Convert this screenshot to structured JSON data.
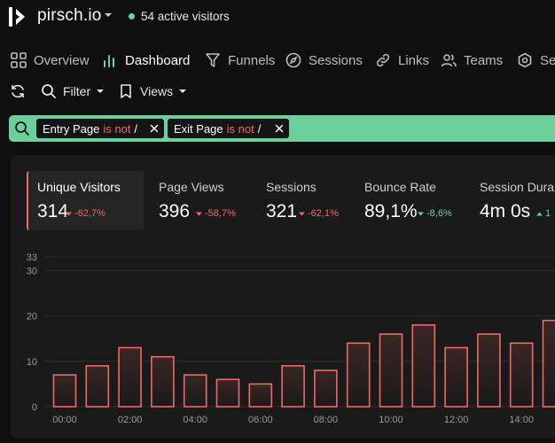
{
  "header": {
    "brand": "pirsch.io",
    "active_visitors": "54 active visitors",
    "accent_green": "#6ccf9c",
    "accent_red": "#ee6b63"
  },
  "nav": {
    "items": [
      {
        "label": "Overview",
        "icon": "grid-icon"
      },
      {
        "label": "Dashboard",
        "icon": "bar-chart-icon"
      },
      {
        "label": "Funnels",
        "icon": "funnel-icon"
      },
      {
        "label": "Sessions",
        "icon": "compass-icon"
      },
      {
        "label": "Links",
        "icon": "link-icon"
      },
      {
        "label": "Teams",
        "icon": "users-icon"
      },
      {
        "label": "Se",
        "icon": "gear-icon"
      }
    ]
  },
  "toolbar": {
    "filter_label": "Filter",
    "views_label": "Views"
  },
  "filters": [
    {
      "field": "Entry Page",
      "operator": "is not",
      "value": "/"
    },
    {
      "field": "Exit Page",
      "operator": "is not",
      "value": "/"
    }
  ],
  "stats": [
    {
      "label": "Unique Visitors",
      "value": "314",
      "delta": "-62,7%",
      "trend": "down"
    },
    {
      "label": "Page Views",
      "value": "396",
      "delta": "-58,7%",
      "trend": "down"
    },
    {
      "label": "Sessions",
      "value": "321",
      "delta": "-62,1%",
      "trend": "down"
    },
    {
      "label": "Bounce Rate",
      "value": "89,1%",
      "delta": "-8,6%",
      "trend": "down-good"
    },
    {
      "label": "Session Dura",
      "value": "4m 0s",
      "delta": "1",
      "trend": "up"
    }
  ],
  "chart_data": {
    "type": "bar",
    "x": [
      "00:00",
      "01:00",
      "02:00",
      "03:00",
      "04:00",
      "05:00",
      "06:00",
      "07:00",
      "08:00",
      "09:00",
      "10:00",
      "11:00",
      "12:00",
      "13:00",
      "14:00",
      "15:00"
    ],
    "x_tick_labels": [
      "00:00",
      "02:00",
      "04:00",
      "06:00",
      "08:00",
      "10:00",
      "12:00",
      "14:00"
    ],
    "values": [
      7,
      9,
      13,
      11,
      7,
      6,
      5,
      9,
      8,
      14,
      16,
      18,
      13,
      16,
      14,
      19
    ],
    "y_ticks": [
      0,
      10,
      20,
      30,
      33
    ],
    "ylim": [
      0,
      33
    ],
    "series": [
      {
        "name": "Unique Visitors",
        "color": "#ee6b63"
      }
    ],
    "grid": true
  }
}
